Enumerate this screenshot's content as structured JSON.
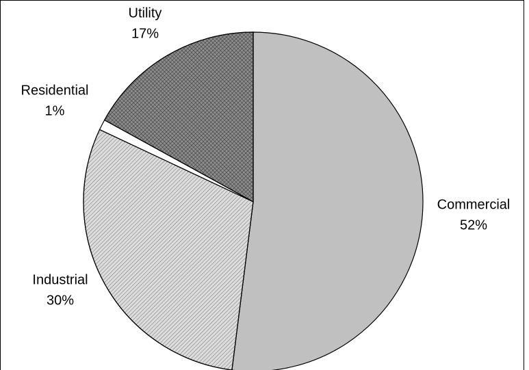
{
  "chart_data": {
    "type": "pie",
    "categories": [
      "Commercial",
      "Industrial",
      "Residential",
      "Utility"
    ],
    "values": [
      52,
      30,
      1,
      17
    ],
    "value_labels": [
      "52%",
      "30%",
      "1%",
      "17%"
    ],
    "colors": [
      "#c0c0c0",
      "#dcdcdc",
      "#ffffff",
      "#8c8c8c"
    ]
  }
}
